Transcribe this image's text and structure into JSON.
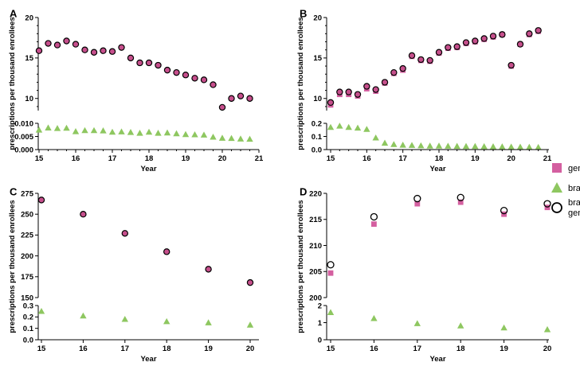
{
  "colors": {
    "generic": "#d45fa0",
    "brand": "#8ec760",
    "combined_fill": "#c64f8c",
    "axis": "#000000"
  },
  "legend": [
    {
      "key": "generic",
      "label": "generic",
      "marker": "square"
    },
    {
      "key": "brand",
      "label": "brand",
      "marker": "triangle"
    },
    {
      "key": "combined",
      "label_lines": [
        "brand +",
        "generic"
      ],
      "marker": "open-circle"
    }
  ],
  "chart_data": [
    {
      "panel": "A",
      "type": "scatter",
      "xlabel": "Year",
      "ylabel": "prescriptions per thousand enrollees",
      "x_ticks": [
        "15",
        "16",
        "17",
        "18",
        "19",
        "20",
        "21"
      ],
      "xlim": [
        15,
        21
      ],
      "upper": {
        "ylim": [
          8.5,
          20
        ],
        "y_ticks": [
          "10",
          "15",
          "20"
        ],
        "y_tick_values": [
          10,
          15,
          20
        ],
        "series": [
          {
            "name": "brand + generic",
            "marker": "filled-circle",
            "x": [
              15,
              15.25,
              15.5,
              15.75,
              16,
              16.25,
              16.5,
              16.75,
              17,
              17.25,
              17.5,
              17.75,
              18,
              18.25,
              18.5,
              18.75,
              19,
              19.25,
              19.5,
              19.75,
              20,
              20.25,
              20.5,
              20.75
            ],
            "y": [
              15.9,
              16.8,
              16.6,
              17.1,
              16.7,
              16.0,
              15.7,
              15.9,
              15.8,
              16.3,
              15.0,
              14.4,
              14.4,
              14.1,
              13.5,
              13.2,
              12.9,
              12.5,
              12.3,
              11.7,
              8.9,
              10.0,
              10.3,
              10.0
            ]
          }
        ]
      },
      "lower": {
        "ylim": [
          0,
          0.01
        ],
        "y_ticks": [
          "0.000",
          "0.005",
          "0.010"
        ],
        "y_tick_values": [
          0,
          0.005,
          0.01
        ],
        "series": [
          {
            "name": "brand",
            "marker": "triangle",
            "x": [
              15,
              15.25,
              15.5,
              15.75,
              16,
              16.25,
              16.5,
              16.75,
              17,
              17.25,
              17.5,
              17.75,
              18,
              18.25,
              18.5,
              18.75,
              19,
              19.25,
              19.5,
              19.75,
              20,
              20.25,
              20.5,
              20.75
            ],
            "y": [
              0.0075,
              0.0083,
              0.0081,
              0.0082,
              0.0069,
              0.0073,
              0.0073,
              0.0072,
              0.0067,
              0.0068,
              0.0066,
              0.0063,
              0.0067,
              0.0063,
              0.0064,
              0.0061,
              0.0058,
              0.0057,
              0.0056,
              0.0048,
              0.0044,
              0.0043,
              0.0041,
              0.004
            ]
          }
        ]
      }
    },
    {
      "panel": "B",
      "type": "scatter",
      "xlabel": "Year",
      "ylabel": "prescriptions per thousand enrollees",
      "x_ticks": [
        "15",
        "16",
        "17",
        "18",
        "19",
        "20",
        "21"
      ],
      "xlim": [
        15,
        21
      ],
      "upper": {
        "ylim": [
          8.5,
          20
        ],
        "y_ticks": [
          "10",
          "15",
          "20"
        ],
        "y_tick_values": [
          10,
          15,
          20
        ],
        "series": [
          {
            "name": "generic",
            "marker": "square",
            "x": [
              15,
              15.25,
              15.5,
              15.75,
              16,
              16.25,
              16.5,
              16.75,
              17,
              17.25,
              17.5,
              17.75,
              18,
              18.25,
              18.5,
              18.75,
              19,
              19.25,
              19.5,
              19.75,
              20,
              20.25,
              20.5,
              20.75
            ],
            "y": [
              9.2,
              10.5,
              10.5,
              10.3,
              11.2,
              10.9,
              11.9,
              13.1,
              13.5,
              15.2,
              14.7,
              14.6,
              15.6,
              16.2,
              16.3,
              16.8,
              17.0,
              17.3,
              17.6,
              17.9,
              14.0,
              16.7,
              17.9,
              18.3
            ]
          },
          {
            "name": "brand + generic",
            "marker": "filled-circle",
            "x": [
              15,
              15.25,
              15.5,
              15.75,
              16,
              16.25,
              16.5,
              16.75,
              17,
              17.25,
              17.5,
              17.75,
              18,
              18.25,
              18.5,
              18.75,
              19,
              19.25,
              19.5,
              19.75,
              20,
              20.25,
              20.5,
              20.75
            ],
            "y": [
              9.5,
              10.8,
              10.8,
              10.5,
              11.5,
              11.1,
              12.0,
              13.2,
              13.7,
              15.3,
              14.8,
              14.7,
              15.7,
              16.3,
              16.4,
              16.9,
              17.1,
              17.4,
              17.7,
              17.9,
              14.1,
              16.7,
              18.0,
              18.4
            ]
          }
        ]
      },
      "lower": {
        "ylim": [
          0,
          0.2
        ],
        "y_ticks": [
          "0.0",
          "0.1",
          "0.2"
        ],
        "y_tick_values": [
          0,
          0.1,
          0.2
        ],
        "series": [
          {
            "name": "brand",
            "marker": "triangle",
            "x": [
              15,
              15.25,
              15.5,
              15.75,
              16,
              16.25,
              16.5,
              16.75,
              17,
              17.25,
              17.5,
              17.75,
              18,
              18.25,
              18.5,
              18.75,
              19,
              19.25,
              19.5,
              19.75,
              20,
              20.25,
              20.5,
              20.75
            ],
            "y": [
              0.17,
              0.18,
              0.17,
              0.165,
              0.155,
              0.09,
              0.05,
              0.04,
              0.035,
              0.033,
              0.03,
              0.028,
              0.028,
              0.027,
              0.026,
              0.025,
              0.025,
              0.024,
              0.023,
              0.022,
              0.021,
              0.02,
              0.019,
              0.018
            ]
          }
        ]
      }
    },
    {
      "panel": "C",
      "type": "scatter",
      "xlabel": "Year",
      "ylabel": "prescriptions per thousand enrollees",
      "x_ticks": [
        "15",
        "16",
        "17",
        "18",
        "19",
        "20"
      ],
      "xlim": [
        15,
        20
      ],
      "upper": {
        "ylim": [
          150,
          275
        ],
        "y_ticks": [
          "150",
          "175",
          "200",
          "225",
          "250",
          "275"
        ],
        "y_tick_values": [
          150,
          175,
          200,
          225,
          250,
          275
        ],
        "series": [
          {
            "name": "brand + generic",
            "marker": "filled-circle",
            "x": [
              15,
              16,
              17,
              18,
              19,
              20
            ],
            "y": [
              267,
              250,
              227,
              205,
              184,
              168
            ]
          }
        ]
      },
      "lower": {
        "ylim": [
          0,
          0.3
        ],
        "y_ticks": [
          "0.0",
          "0.1",
          "0.2",
          "0.3"
        ],
        "y_tick_values": [
          0,
          0.1,
          0.2,
          0.3
        ],
        "series": [
          {
            "name": "brand",
            "marker": "triangle",
            "x": [
              15,
              16,
              17,
              18,
              19,
              20
            ],
            "y": [
              0.25,
              0.21,
              0.18,
              0.16,
              0.15,
              0.13
            ]
          }
        ]
      }
    },
    {
      "panel": "D",
      "type": "scatter",
      "xlabel": "Year",
      "ylabel": "prescriptions per thousand enrollees",
      "x_ticks": [
        "15",
        "16",
        "17",
        "18",
        "19",
        "20"
      ],
      "xlim": [
        15,
        20
      ],
      "upper": {
        "ylim": [
          200,
          220
        ],
        "y_ticks": [
          "200",
          "205",
          "210",
          "215",
          "220"
        ],
        "y_tick_values": [
          200,
          205,
          210,
          215,
          220
        ],
        "series": [
          {
            "name": "generic",
            "marker": "square",
            "x": [
              15,
              16,
              17,
              18,
              19,
              20
            ],
            "y": [
              204.7,
              214.1,
              218.0,
              218.3,
              216.0,
              217.3
            ]
          },
          {
            "name": "brand + generic",
            "marker": "open-circle",
            "x": [
              15,
              16,
              17,
              18,
              19,
              20
            ],
            "y": [
              206.3,
              215.5,
              219.0,
              219.2,
              216.7,
              218.0
            ]
          }
        ]
      },
      "lower": {
        "ylim": [
          0,
          2
        ],
        "y_ticks": [
          "0",
          "1",
          "2"
        ],
        "y_tick_values": [
          0,
          1,
          2
        ],
        "series": [
          {
            "name": "brand",
            "marker": "triangle",
            "x": [
              15,
              16,
              17,
              18,
              19,
              20
            ],
            "y": [
              1.6,
              1.25,
              0.95,
              0.82,
              0.7,
              0.6
            ]
          }
        ]
      }
    }
  ]
}
